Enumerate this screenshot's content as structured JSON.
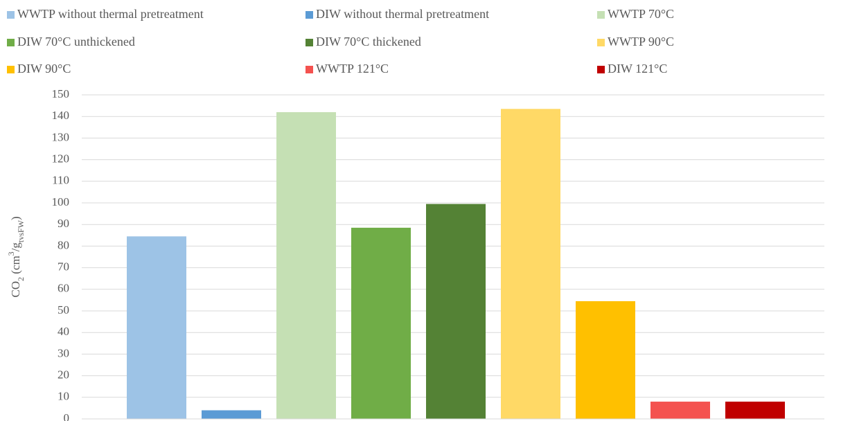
{
  "chart_data": {
    "type": "bar",
    "categories": [
      "WWTP without thermal pretreatment",
      "DIW without thermal pretreatment",
      "WWTP 70°C",
      "DIW 70°C unthickened",
      "DIW 70°C thickened",
      "WWTP 90°C",
      "DIW 90°C",
      "WWTP 121°C",
      "DIW 121°C"
    ],
    "values": [
      84.5,
      4,
      142,
      88.5,
      99.5,
      143.5,
      54.5,
      8,
      8
    ],
    "colors": [
      "#9dc3e6",
      "#5b9bd5",
      "#c5e0b4",
      "#70ad47",
      "#548235",
      "#ffd966",
      "#ffc000",
      "#f4524f",
      "#c00000"
    ],
    "y_label": [
      {
        "text": "CO",
        "shift": "none"
      },
      {
        "text": "2",
        "shift": "sub"
      },
      {
        "text": " (cm",
        "shift": "none"
      },
      {
        "text": "3",
        "shift": "super"
      },
      {
        "text": "/g",
        "shift": "none"
      },
      {
        "text": "tvsFW",
        "shift": "sub"
      },
      {
        "text": ")",
        "shift": "none"
      }
    ],
    "ylim": [
      0,
      150
    ],
    "yticks": [
      0,
      10,
      20,
      30,
      40,
      50,
      60,
      70,
      80,
      90,
      100,
      110,
      120,
      130,
      140,
      150
    ],
    "grid": true,
    "legend": "top"
  }
}
